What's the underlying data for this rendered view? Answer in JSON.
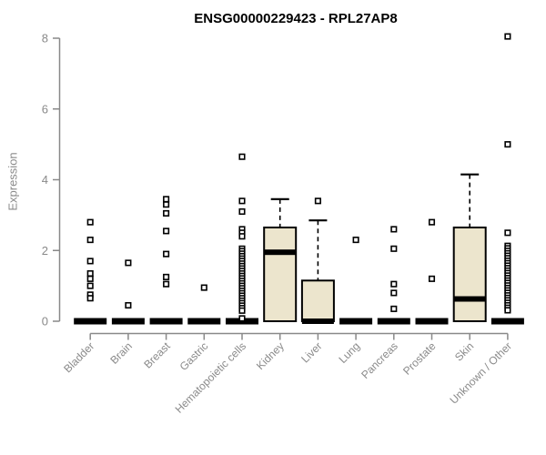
{
  "chart_data": {
    "type": "boxplot",
    "title": "ENSG00000229423 - RPL27AP8",
    "xlabel": "",
    "ylabel": "Expression",
    "ylim": [
      0,
      8
    ],
    "yticks": [
      "0",
      "2",
      "4",
      "6",
      "8"
    ],
    "grid": false,
    "legend": false,
    "marker_style": "open-square",
    "categories": [
      "Bladder",
      "Brain",
      "Breast",
      "Gastric",
      "Hematopoietic cells",
      "Kidney",
      "Liver",
      "Lung",
      "Pancreas",
      "Prostate",
      "Skin",
      "Unknown / Other"
    ],
    "series": [
      {
        "name": "Bladder",
        "q1": 0,
        "median": 0,
        "q3": 0,
        "whisker_low": 0,
        "whisker_high": 0,
        "outliers": [
          2.8,
          2.3,
          1.7,
          1.35,
          1.2,
          1.0,
          0.75,
          0.65
        ]
      },
      {
        "name": "Brain",
        "q1": 0,
        "median": 0,
        "q3": 0,
        "whisker_low": 0,
        "whisker_high": 0,
        "outliers": [
          1.65,
          0.45
        ]
      },
      {
        "name": "Breast",
        "q1": 0,
        "median": 0,
        "q3": 0,
        "whisker_low": 0,
        "whisker_high": 0,
        "outliers": [
          3.45,
          3.3,
          3.05,
          2.55,
          1.9,
          1.25,
          1.05
        ]
      },
      {
        "name": "Gastric",
        "q1": 0,
        "median": 0,
        "q3": 0,
        "whisker_low": 0,
        "whisker_high": 0,
        "outliers": [
          0.95
        ]
      },
      {
        "name": "Hematopoietic cells",
        "q1": 0,
        "median": 0,
        "q3": 0,
        "whisker_low": 0,
        "whisker_high": 0,
        "outliers": [
          4.65,
          3.4,
          3.1,
          2.6,
          2.5,
          2.4,
          2.05,
          1.98,
          1.91,
          1.84,
          1.77,
          1.7,
          1.63,
          1.56,
          1.49,
          1.42,
          1.35,
          1.28,
          1.21,
          1.14,
          1.07,
          1.0,
          0.93,
          0.86,
          0.79,
          0.72,
          0.65,
          0.58,
          0.51,
          0.44,
          0.37,
          0.3,
          0.08
        ]
      },
      {
        "name": "Kidney",
        "q1": 0,
        "median": 1.95,
        "q3": 2.65,
        "whisker_low": 0,
        "whisker_high": 3.45,
        "outliers": []
      },
      {
        "name": "Liver",
        "q1": 0,
        "median": 0,
        "q3": 1.15,
        "whisker_low": 0,
        "whisker_high": 2.85,
        "outliers": [
          3.4
        ]
      },
      {
        "name": "Lung",
        "q1": 0,
        "median": 0,
        "q3": 0,
        "whisker_low": 0,
        "whisker_high": 0,
        "outliers": [
          2.3
        ]
      },
      {
        "name": "Pancreas",
        "q1": 0,
        "median": 0,
        "q3": 0,
        "whisker_low": 0,
        "whisker_high": 0,
        "outliers": [
          2.6,
          2.05,
          1.05,
          0.8,
          0.35
        ]
      },
      {
        "name": "Prostate",
        "q1": 0,
        "median": 0,
        "q3": 0,
        "whisker_low": 0,
        "whisker_high": 0,
        "outliers": [
          2.8,
          1.2
        ]
      },
      {
        "name": "Skin",
        "q1": 0,
        "median": 0.63,
        "q3": 2.65,
        "whisker_low": 0,
        "whisker_high": 4.15,
        "outliers": []
      },
      {
        "name": "Unknown / Other",
        "q1": 0,
        "median": 0,
        "q3": 0,
        "whisker_low": 0,
        "whisker_high": 0,
        "outliers": [
          8.05,
          5.0,
          2.5,
          2.13,
          2.06,
          1.99,
          1.92,
          1.85,
          1.78,
          1.71,
          1.64,
          1.57,
          1.5,
          1.43,
          1.36,
          1.29,
          1.22,
          1.15,
          1.08,
          1.01,
          0.94,
          0.87,
          0.8,
          0.73,
          0.66,
          0.59,
          0.52,
          0.45,
          0.38,
          0.31
        ]
      }
    ],
    "colors": {
      "box_fill": "#ece5cd",
      "box_border": "#000000",
      "median": "#000000",
      "outlier_stroke": "#000000",
      "outlier_fill": "#ffffff",
      "axis": "#898989",
      "tick_text": "#8a8a8a",
      "title_text": "#000000",
      "background": "#ffffff"
    }
  }
}
